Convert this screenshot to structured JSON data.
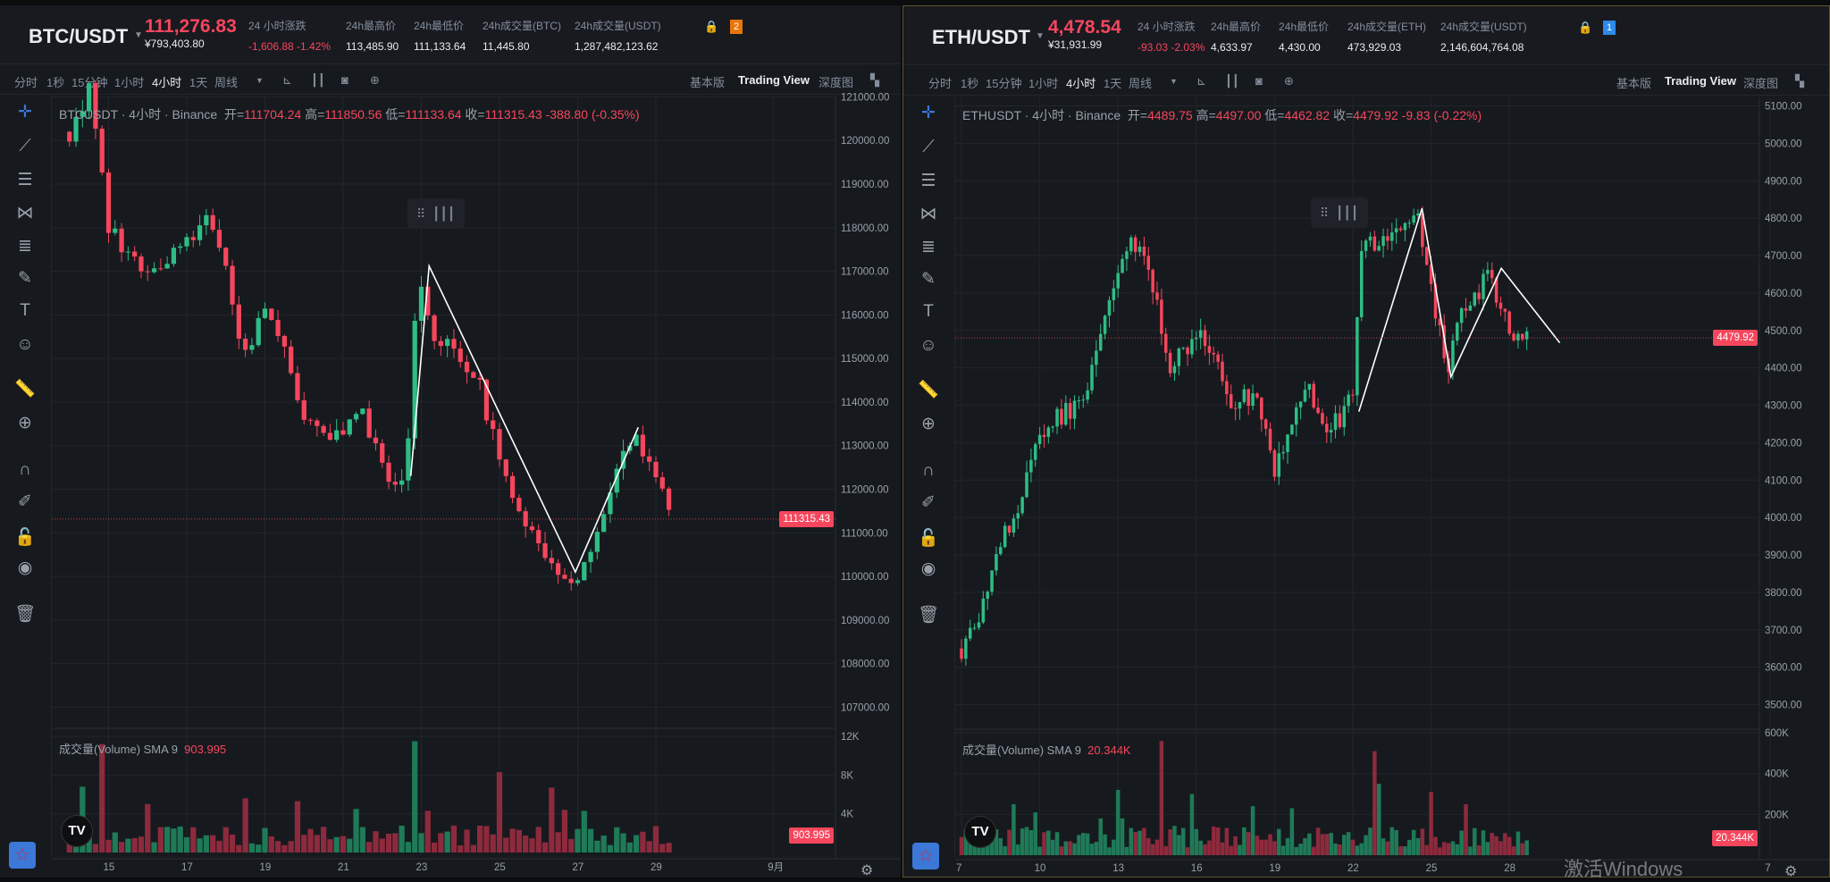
{
  "panels": [
    {
      "pair": "BTC/USDT",
      "price": "111,276.83",
      "cny": "¥793,403.80",
      "stats": [
        {
          "label": "24 小时涨跌",
          "value": "-1,606.88 -1.42%",
          "red": true
        },
        {
          "label": "24h最高价",
          "value": "113,485.90"
        },
        {
          "label": "24h最低价",
          "value": "111,133.64"
        },
        {
          "label": "24h成交量(BTC)",
          "value": "11,445.80"
        },
        {
          "label": "24h成交量(USDT)",
          "value": "1,287,482,123.62"
        }
      ],
      "badge": "2",
      "badge_color": "#e8750a",
      "legend": {
        "symbol": "BTCUSDT · 4小时 · Binance",
        "open": "开=",
        "open_v": "111704.24",
        "high": "高=",
        "high_v": "111850.56",
        "low": "低=",
        "low_v": "111133.64",
        "close": "收=",
        "close_v": "111315.43",
        "change": "-388.80 (-0.35%)"
      },
      "volume_legend": {
        "label": "成交量(Volume) SMA 9",
        "value": "903.995"
      },
      "last_price": "111315.43",
      "last_volume": "903.995"
    },
    {
      "pair": "ETH/USDT",
      "price": "4,478.54",
      "cny": "¥31,931.99",
      "stats": [
        {
          "label": "24 小时涨跌",
          "value": "-93.03 -2.03%",
          "red": true
        },
        {
          "label": "24h最高价",
          "value": "4,633.97"
        },
        {
          "label": "24h最低价",
          "value": "4,430.00"
        },
        {
          "label": "24h成交量(ETH)",
          "value": "473,929.03"
        },
        {
          "label": "24h成交量(USDT)",
          "value": "2,146,604,764.08"
        }
      ],
      "badge": "1",
      "badge_color": "#2f8ae8",
      "legend": {
        "symbol": "ETHUSDT · 4小时 · Binance",
        "open": "开=",
        "open_v": "4489.75",
        "high": "高=",
        "high_v": "4497.00",
        "low": "低=",
        "low_v": "4462.82",
        "close": "收=",
        "close_v": "4479.92",
        "change": "-9.83 (-0.22%)"
      },
      "volume_legend": {
        "label": "成交量(Volume) SMA 9",
        "value": "20.344K"
      },
      "last_price": "4479.92",
      "last_volume": "20.344K"
    }
  ],
  "toolbar": {
    "intervals": [
      "分时",
      "1秒",
      "15分钟",
      "1小时",
      "4小时",
      "1天",
      "周线"
    ],
    "active": "4小时",
    "views": [
      "基本版",
      "Trading View",
      "深度图"
    ],
    "active_view": "Trading View"
  },
  "watermark": "激活Windows",
  "tv_logo": "TV",
  "colors": {
    "up": "#2ebd85",
    "down": "#f6465d",
    "up_vol": "#1f7a58",
    "down_vol": "#8e2a3d",
    "bg": "#161a1e"
  },
  "chart_data": [
    {
      "type": "candlestick",
      "symbol": "BTCUSDT",
      "interval": "4h",
      "ylim": [
        106500,
        121300
      ],
      "xlim": [
        13.8,
        33
      ],
      "yticks": [
        121000,
        120000,
        119000,
        118000,
        117000,
        116000,
        115000,
        114000,
        113000,
        112000,
        111000,
        110000,
        109000,
        108000,
        107000
      ],
      "xticks": [
        {
          "t": 15,
          "label": "15"
        },
        {
          "t": 17,
          "label": "17"
        },
        {
          "t": 19,
          "label": "19"
        },
        {
          "t": 21,
          "label": "21"
        },
        {
          "t": 23,
          "label": "23"
        },
        {
          "t": 25,
          "label": "25"
        },
        {
          "t": 27,
          "label": "27"
        },
        {
          "t": 29,
          "label": "29"
        },
        {
          "t": 32,
          "label": "9月"
        }
      ],
      "price_path": [
        [
          14,
          120200
        ],
        [
          14.5,
          121200
        ],
        [
          15,
          118000
        ],
        [
          15.5,
          117400
        ],
        [
          16,
          117000
        ],
        [
          16.8,
          117600
        ],
        [
          17.5,
          118100
        ],
        [
          18,
          117000
        ],
        [
          18.4,
          115000
        ],
        [
          19,
          116000
        ],
        [
          19.5,
          115200
        ],
        [
          20,
          113600
        ],
        [
          20.6,
          113000
        ],
        [
          21.5,
          113700
        ],
        [
          22.2,
          112100
        ],
        [
          22.6,
          112300
        ],
        [
          22.9,
          116800
        ],
        [
          23.3,
          115600
        ],
        [
          24,
          115000
        ],
        [
          24.5,
          114300
        ],
        [
          25,
          112600
        ],
        [
          25.6,
          111500
        ],
        [
          26.2,
          110300
        ],
        [
          26.8,
          109700
        ],
        [
          27.3,
          110600
        ],
        [
          27.8,
          112000
        ],
        [
          28.4,
          113200
        ],
        [
          28.9,
          112400
        ],
        [
          29.4,
          111315
        ]
      ],
      "noise": 450,
      "start": 14,
      "end": 29.4,
      "volume": {
        "ylim": [
          0,
          13500
        ],
        "yticks": [
          {
            "v": 12000,
            "label": "12K"
          },
          {
            "v": 8000,
            "label": "8K"
          },
          {
            "v": 4000,
            "label": "4K"
          }
        ],
        "base": 1800,
        "spikes": [
          [
            14.3,
            6800
          ],
          [
            14.9,
            11200
          ],
          [
            16,
            5000
          ],
          [
            18.5,
            5600
          ],
          [
            19.9,
            5300
          ],
          [
            21.4,
            4500
          ],
          [
            22.9,
            11500
          ],
          [
            23.1,
            4300
          ],
          [
            25,
            8300
          ],
          [
            26.3,
            6700
          ],
          [
            26.7,
            4400
          ],
          [
            27.1,
            4300
          ]
        ]
      },
      "drawing": [
        [
          22.73,
          112300
        ],
        [
          23.2,
          117120
        ],
        [
          26.94,
          110100
        ],
        [
          28.55,
          113420
        ]
      ]
    },
    {
      "type": "candlestick",
      "symbol": "ETHUSDT",
      "interval": "4h",
      "ylim": [
        3420,
        5130
      ],
      "xlim": [
        6.5,
        38.5
      ],
      "yticks": [
        5100,
        5000,
        4900,
        4800,
        4700,
        4600,
        4500,
        4400,
        4300,
        4200,
        4100,
        4000,
        3900,
        3800,
        3700,
        3600,
        3500
      ],
      "xticks": [
        {
          "t": 7,
          "label": "7"
        },
        {
          "t": 10,
          "label": "10"
        },
        {
          "t": 13,
          "label": "13"
        },
        {
          "t": 16,
          "label": "16"
        },
        {
          "t": 19,
          "label": "19"
        },
        {
          "t": 22,
          "label": "22"
        },
        {
          "t": 25,
          "label": "25"
        },
        {
          "t": 28,
          "label": "28"
        },
        {
          "t": 38,
          "label": "7"
        }
      ],
      "price_path": [
        [
          7,
          3650
        ],
        [
          7.5,
          3700
        ],
        [
          8.3,
          3900
        ],
        [
          9,
          4000
        ],
        [
          9.7,
          4150
        ],
        [
          10.3,
          4250
        ],
        [
          11,
          4280
        ],
        [
          11.7,
          4300
        ],
        [
          12.2,
          4450
        ],
        [
          12.8,
          4620
        ],
        [
          13.5,
          4760
        ],
        [
          13.9,
          4700
        ],
        [
          14.5,
          4560
        ],
        [
          15,
          4400
        ],
        [
          15.6,
          4460
        ],
        [
          16.3,
          4480
        ],
        [
          16.8,
          4400
        ],
        [
          17.3,
          4310
        ],
        [
          17.8,
          4330
        ],
        [
          18.4,
          4300
        ],
        [
          19,
          4120
        ],
        [
          19.6,
          4240
        ],
        [
          20.3,
          4340
        ],
        [
          21,
          4250
        ],
        [
          21.6,
          4260
        ],
        [
          22,
          4330
        ],
        [
          22.4,
          4760
        ],
        [
          23,
          4720
        ],
        [
          23.7,
          4780
        ],
        [
          24.5,
          4790
        ],
        [
          25,
          4620
        ],
        [
          25.6,
          4390
        ],
        [
          26,
          4520
        ],
        [
          26.7,
          4600
        ],
        [
          27.2,
          4640
        ],
        [
          27.7,
          4560
        ],
        [
          28.2,
          4460
        ],
        [
          28.7,
          4480
        ]
      ],
      "noise": 55,
      "start": 7,
      "end": 28.7,
      "volume": {
        "ylim": [
          0,
          620000
        ],
        "yticks": [
          {
            "v": 600000,
            "label": "600K"
          },
          {
            "v": 400000,
            "label": "400K"
          },
          {
            "v": 200000,
            "label": "200K"
          }
        ],
        "base": 90000,
        "spikes": [
          [
            9,
            250000
          ],
          [
            9.9,
            210000
          ],
          [
            12.3,
            180000
          ],
          [
            13,
            320000
          ],
          [
            13.2,
            180000
          ],
          [
            14.7,
            560000
          ],
          [
            15.8,
            300000
          ],
          [
            18.2,
            240000
          ],
          [
            19.7,
            230000
          ],
          [
            22.8,
            510000
          ],
          [
            23,
            350000
          ],
          [
            25,
            310000
          ],
          [
            26.4,
            250000
          ]
        ]
      },
      "drawing": [
        [
          22.23,
          4283
        ],
        [
          24.65,
          4826
        ],
        [
          25.76,
          4376
        ],
        [
          27.69,
          4666
        ],
        [
          29.93,
          4467
        ]
      ]
    }
  ]
}
